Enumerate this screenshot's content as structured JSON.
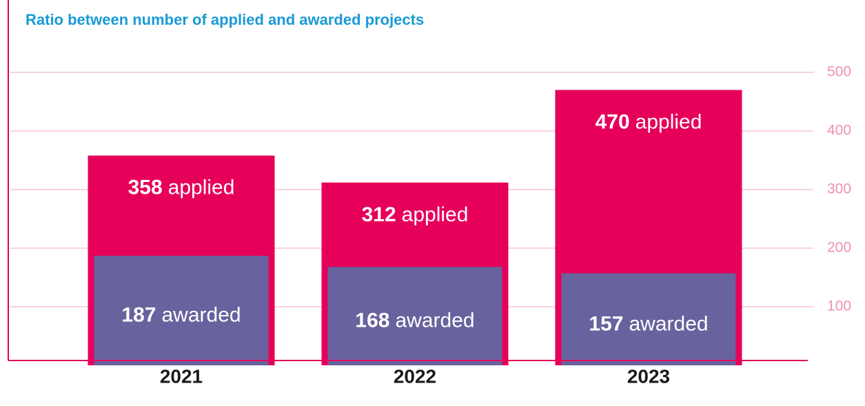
{
  "chart_data": {
    "type": "bar",
    "title": "Ratio between number of applied and awarded projects",
    "categories": [
      "2021",
      "2022",
      "2023"
    ],
    "series": [
      {
        "name": "applied",
        "color": "#e6005a",
        "values": [
          358,
          312,
          470
        ]
      },
      {
        "name": "awarded",
        "color": "#68629e",
        "values": [
          187,
          168,
          157
        ]
      }
    ],
    "ylim": [
      0,
      600
    ],
    "yticks": [
      100,
      200,
      300,
      400,
      500
    ],
    "grid": true,
    "overlap": true
  }
}
